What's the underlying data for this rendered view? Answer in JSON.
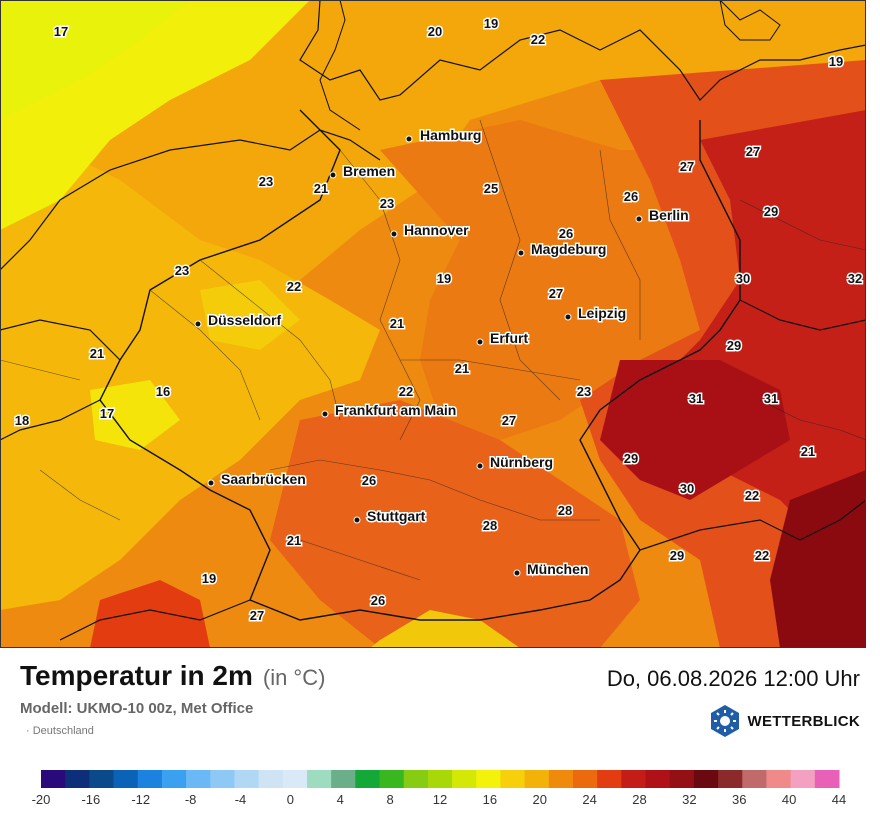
{
  "header": {
    "title": "Temperatur in 2m",
    "unit": "(in °C)",
    "model": "Modell: UKMO-10 00z, Met Office",
    "region": "· Deutschland",
    "datetime": "Do, 06.08.2026 12:00 Uhr",
    "brand": "WETTERBLICK"
  },
  "colors": {
    "sea_north": "#f1a70c",
    "lowland_west": "#f7f007",
    "accent_brand": "#1f5da6"
  },
  "cities": [
    {
      "name": "Hamburg"
    },
    {
      "name": "Bremen"
    },
    {
      "name": "Hannover"
    },
    {
      "name": "Berlin"
    },
    {
      "name": "Magdeburg"
    },
    {
      "name": "Leipzig"
    },
    {
      "name": "Düsseldorf"
    },
    {
      "name": "Erfurt"
    },
    {
      "name": "Frankfurt am Main"
    },
    {
      "name": "Nürnberg"
    },
    {
      "name": "Saarbrücken"
    },
    {
      "name": "Stuttgart"
    },
    {
      "name": "München"
    }
  ],
  "temperature_labels": [
    "17",
    "20",
    "19",
    "22",
    "19",
    "27",
    "27",
    "26",
    "29",
    "23",
    "21",
    "25",
    "23",
    "26",
    "30",
    "32",
    "23",
    "22",
    "19",
    "27",
    "21",
    "21",
    "29",
    "21",
    "18",
    "17",
    "16",
    "22",
    "23",
    "31",
    "31",
    "27",
    "21",
    "29",
    "26",
    "30",
    "22",
    "28",
    "28",
    "21",
    "19",
    "29",
    "22",
    "26",
    "27"
  ],
  "legend": {
    "colors": [
      "#2a0a7a",
      "#0d2f7a",
      "#0a4a8a",
      "#0b63b8",
      "#1b82e0",
      "#3aa0f0",
      "#6ab8f5",
      "#8ec8f5",
      "#b0d8f5",
      "#cfe3f5",
      "#d9e9f7",
      "#9edcc0",
      "#6aae8a",
      "#14a838",
      "#38b81e",
      "#86cc12",
      "#a8d808",
      "#d4e806",
      "#f4f20a",
      "#f6d00a",
      "#f2b20a",
      "#f08a0c",
      "#ec6a0e",
      "#e23c10",
      "#c41c16",
      "#b01018",
      "#941014",
      "#6a0a10",
      "#8a2a2a",
      "#c06a6a",
      "#f08a8a",
      "#f4a0c0",
      "#e860b8"
    ],
    "ticks": [
      "-20",
      "-16",
      "-12",
      "-8",
      "-4",
      "0",
      "4",
      "8",
      "12",
      "16",
      "20",
      "24",
      "28",
      "32",
      "36",
      "40",
      "44"
    ]
  }
}
